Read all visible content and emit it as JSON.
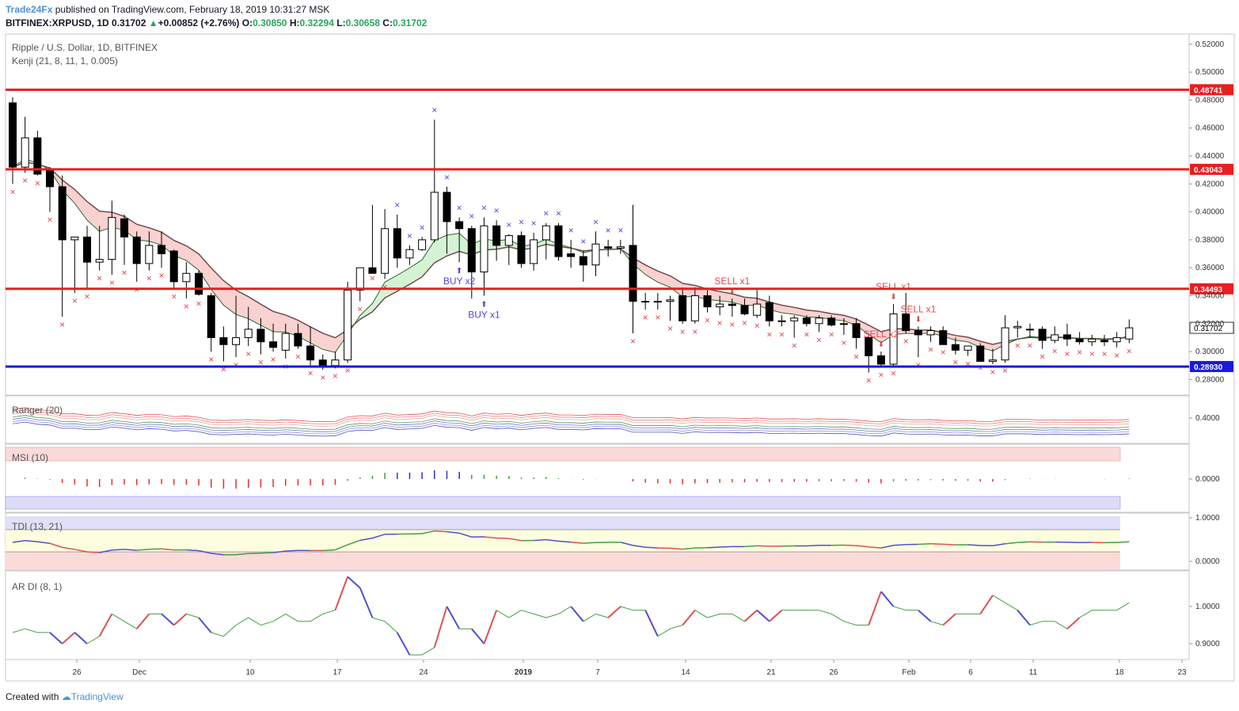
{
  "header": {
    "publisher": "Trade24Fx",
    "published_text": "published on TradingView.com, February 18, 2019 10:31:27 MSK",
    "symbol": "BITFINEX:XRPUSD, 1D",
    "last": "0.31702",
    "change": "+0.00852 (+2.76%)",
    "o_label": "O:",
    "o": "0.30850",
    "h_label": "H:",
    "h": "0.32294",
    "l_label": "L:",
    "l": "0.30658",
    "c_label": "C:",
    "c": "0.31702"
  },
  "footer": {
    "created_with": "Created with",
    "brand": "TradingView"
  },
  "colors": {
    "up": "#ffffff",
    "down": "#000000",
    "red_line": "#e91e1e",
    "blue_line": "#1a1adb",
    "sell": "#e0484f",
    "buy": "#4b4bd8",
    "cloud_red": "#f9c6c6",
    "cloud_green": "#c9f0c9"
  },
  "chart_data": [
    {
      "type": "candlestick",
      "title": "Ripple / U.S. Dollar, 1D, BITFINEX",
      "indicator": "Kenji (21, 8, 11, 1, 0.005)",
      "x_ticks": [
        "26",
        "Dec",
        "10",
        "17",
        "24",
        "2019",
        "7",
        "14",
        "21",
        "26",
        "Feb",
        "6",
        "11",
        "18",
        "23"
      ],
      "y_ticks": [
        "0.52000",
        "0.50000",
        "0.48000",
        "0.46000",
        "0.44000",
        "0.42000",
        "0.40000",
        "0.38000",
        "0.36000",
        "0.34000",
        "0.32000",
        "0.30000",
        "0.28000"
      ],
      "ylim": [
        0.27,
        0.525
      ],
      "horizontal_levels": [
        {
          "value": 0.48741,
          "label": "0.48741",
          "color": "red"
        },
        {
          "value": 0.43043,
          "label": "0.43043",
          "color": "red"
        },
        {
          "value": 0.34493,
          "label": "0.34493",
          "color": "red"
        },
        {
          "value": 0.2893,
          "label": "0.28930",
          "color": "blue"
        }
      ],
      "current_label": "0.31702",
      "annotations": [
        {
          "text": "BUY x2",
          "index": 36,
          "side": "buy_below"
        },
        {
          "text": "BUY x1",
          "index": 38,
          "side": "buy_below"
        },
        {
          "text": "SELL x1",
          "index": 58,
          "side": "sell_above"
        },
        {
          "text": "SELL x2",
          "index": 70,
          "side": "sell_above"
        },
        {
          "text": "SELL x1",
          "index": 71,
          "side": "sell_above"
        },
        {
          "text": "SELL x1",
          "index": 73,
          "side": "sell_above"
        }
      ],
      "ohlc": [
        [
          0.478,
          0.482,
          0.42,
          0.432
        ],
        [
          0.432,
          0.468,
          0.428,
          0.453
        ],
        [
          0.453,
          0.458,
          0.426,
          0.427
        ],
        [
          0.43,
          0.432,
          0.4,
          0.418
        ],
        [
          0.418,
          0.426,
          0.325,
          0.38
        ],
        [
          0.38,
          0.382,
          0.342,
          0.382
        ],
        [
          0.382,
          0.39,
          0.345,
          0.364
        ],
        [
          0.364,
          0.39,
          0.358,
          0.366
        ],
        [
          0.366,
          0.408,
          0.355,
          0.396
        ],
        [
          0.395,
          0.398,
          0.362,
          0.382
        ],
        [
          0.382,
          0.386,
          0.35,
          0.363
        ],
        [
          0.363,
          0.386,
          0.358,
          0.376
        ],
        [
          0.376,
          0.386,
          0.36,
          0.37
        ],
        [
          0.372,
          0.373,
          0.345,
          0.35
        ],
        [
          0.35,
          0.364,
          0.338,
          0.356
        ],
        [
          0.356,
          0.358,
          0.34,
          0.341
        ],
        [
          0.34,
          0.342,
          0.3,
          0.31
        ],
        [
          0.31,
          0.318,
          0.293,
          0.305
        ],
        [
          0.305,
          0.34,
          0.296,
          0.31
        ],
        [
          0.31,
          0.332,
          0.304,
          0.316
        ],
        [
          0.316,
          0.324,
          0.298,
          0.307
        ],
        [
          0.307,
          0.32,
          0.3,
          0.303
        ],
        [
          0.301,
          0.32,
          0.295,
          0.313
        ],
        [
          0.313,
          0.32,
          0.302,
          0.304
        ],
        [
          0.304,
          0.318,
          0.29,
          0.294
        ],
        [
          0.294,
          0.298,
          0.287,
          0.29
        ],
        [
          0.29,
          0.3,
          0.288,
          0.294
        ],
        [
          0.294,
          0.35,
          0.292,
          0.344
        ],
        [
          0.344,
          0.358,
          0.336,
          0.36
        ],
        [
          0.36,
          0.405,
          0.358,
          0.356
        ],
        [
          0.356,
          0.402,
          0.352,
          0.388
        ],
        [
          0.388,
          0.398,
          0.36,
          0.367
        ],
        [
          0.367,
          0.376,
          0.362,
          0.373
        ],
        [
          0.373,
          0.382,
          0.372,
          0.38
        ],
        [
          0.38,
          0.466,
          0.378,
          0.414
        ],
        [
          0.414,
          0.418,
          0.37,
          0.393
        ],
        [
          0.393,
          0.396,
          0.364,
          0.388
        ],
        [
          0.388,
          0.39,
          0.338,
          0.357
        ],
        [
          0.357,
          0.396,
          0.34,
          0.39
        ],
        [
          0.39,
          0.394,
          0.365,
          0.376
        ],
        [
          0.376,
          0.384,
          0.362,
          0.383
        ],
        [
          0.383,
          0.386,
          0.36,
          0.363
        ],
        [
          0.363,
          0.385,
          0.358,
          0.38
        ],
        [
          0.38,
          0.392,
          0.366,
          0.39
        ],
        [
          0.39,
          0.392,
          0.365,
          0.368
        ],
        [
          0.37,
          0.38,
          0.36,
          0.368
        ],
        [
          0.368,
          0.372,
          0.35,
          0.362
        ],
        [
          0.362,
          0.386,
          0.354,
          0.377
        ],
        [
          0.375,
          0.38,
          0.368,
          0.374
        ],
        [
          0.374,
          0.38,
          0.37,
          0.375
        ],
        [
          0.376,
          0.405,
          0.313,
          0.336
        ],
        [
          0.336,
          0.342,
          0.33,
          0.336
        ],
        [
          0.336,
          0.342,
          0.33,
          0.336
        ],
        [
          0.336,
          0.34,
          0.322,
          0.337
        ],
        [
          0.34,
          0.346,
          0.32,
          0.322
        ],
        [
          0.322,
          0.346,
          0.32,
          0.34
        ],
        [
          0.34,
          0.344,
          0.328,
          0.332
        ],
        [
          0.332,
          0.34,
          0.326,
          0.334
        ],
        [
          0.334,
          0.338,
          0.325,
          0.333
        ],
        [
          0.333,
          0.338,
          0.326,
          0.327
        ],
        [
          0.326,
          0.344,
          0.324,
          0.334
        ],
        [
          0.335,
          0.34,
          0.318,
          0.322
        ],
        [
          0.322,
          0.326,
          0.318,
          0.322
        ],
        [
          0.322,
          0.326,
          0.31,
          0.324
        ],
        [
          0.324,
          0.326,
          0.318,
          0.32
        ],
        [
          0.32,
          0.326,
          0.314,
          0.324
        ],
        [
          0.324,
          0.326,
          0.318,
          0.319
        ],
        [
          0.32,
          0.324,
          0.312,
          0.32
        ],
        [
          0.32,
          0.324,
          0.302,
          0.31
        ],
        [
          0.31,
          0.312,
          0.285,
          0.297
        ],
        [
          0.297,
          0.3,
          0.289,
          0.291
        ],
        [
          0.291,
          0.334,
          0.29,
          0.327
        ],
        [
          0.327,
          0.342,
          0.313,
          0.315
        ],
        [
          0.315,
          0.318,
          0.296,
          0.312
        ],
        [
          0.312,
          0.318,
          0.307,
          0.315
        ],
        [
          0.315,
          0.318,
          0.305,
          0.305
        ],
        [
          0.305,
          0.31,
          0.298,
          0.301
        ],
        [
          0.301,
          0.304,
          0.297,
          0.304
        ],
        [
          0.304,
          0.306,
          0.294,
          0.293
        ],
        [
          0.293,
          0.302,
          0.291,
          0.294
        ],
        [
          0.294,
          0.326,
          0.292,
          0.317
        ],
        [
          0.317,
          0.322,
          0.31,
          0.318
        ],
        [
          0.316,
          0.32,
          0.31,
          0.316
        ],
        [
          0.316,
          0.318,
          0.302,
          0.308
        ],
        [
          0.308,
          0.318,
          0.306,
          0.312
        ],
        [
          0.312,
          0.32,
          0.304,
          0.309
        ],
        [
          0.309,
          0.314,
          0.305,
          0.307
        ],
        [
          0.307,
          0.312,
          0.304,
          0.309
        ],
        [
          0.308,
          0.312,
          0.304,
          0.307
        ],
        [
          0.307,
          0.314,
          0.303,
          0.31
        ],
        [
          0.309,
          0.323,
          0.306,
          0.317
        ]
      ]
    },
    {
      "type": "line",
      "title": "Ranger (20)",
      "y_ticks": [
        "0.4000"
      ]
    },
    {
      "type": "bar",
      "title": "MSI (10)",
      "y_ticks": [
        "0.0000"
      ]
    },
    {
      "type": "line",
      "title": "TDI (13, 21)",
      "y_ticks": [
        "1.0000",
        "0.0000"
      ]
    },
    {
      "type": "line",
      "title": "AR DI (8, 1)",
      "y_ticks": [
        "1.0000",
        "0.9000"
      ],
      "values": [
        0.93,
        0.94,
        0.93,
        0.93,
        0.9,
        0.93,
        0.9,
        0.92,
        0.98,
        0.96,
        0.94,
        0.98,
        0.98,
        0.95,
        0.98,
        0.97,
        0.93,
        0.92,
        0.95,
        0.97,
        0.95,
        0.96,
        0.98,
        0.96,
        0.96,
        0.98,
        0.99,
        1.08,
        1.05,
        0.97,
        0.96,
        0.93,
        0.87,
        0.87,
        0.89,
        1.0,
        0.94,
        0.94,
        0.9,
        0.99,
        0.97,
        0.99,
        0.98,
        0.97,
        0.98,
        1.0,
        0.96,
        0.98,
        0.97,
        1.0,
        0.99,
        0.99,
        0.92,
        0.94,
        0.95,
        0.99,
        0.97,
        0.98,
        0.98,
        0.96,
        0.99,
        0.96,
        0.99,
        0.99,
        0.99,
        0.99,
        0.98,
        0.96,
        0.95,
        0.95,
        1.04,
        1.0,
        0.99,
        0.99,
        0.96,
        0.95,
        0.98,
        0.98,
        0.98,
        1.03,
        1.01,
        0.99,
        0.95,
        0.96,
        0.96,
        0.94,
        0.97,
        0.99,
        0.99,
        0.99,
        1.01
      ]
    }
  ]
}
